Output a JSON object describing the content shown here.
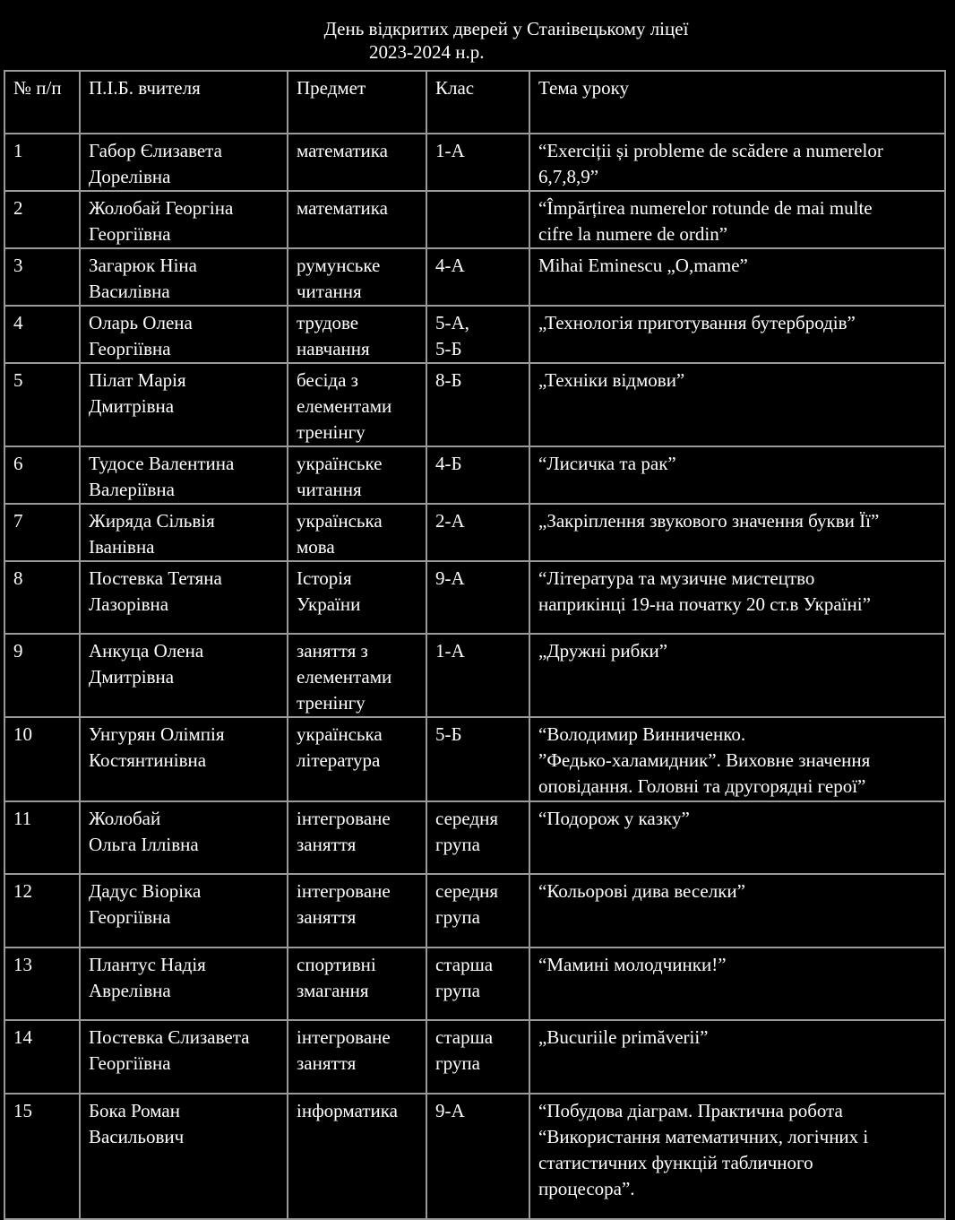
{
  "title": "День відкритих дверей  у Станівецькому ліцеї",
  "subtitle": "2023-2024 н.р.",
  "table": {
    "headers": [
      "№ п/п",
      "П.І.Б. вчителя",
      "Предмет",
      "Клас",
      "Тема уроку"
    ],
    "rows": [
      [
        "1",
        "Габор Єлизавета\nДорелівна",
        "математика",
        "1-А",
        "“Exerciții și probleme de scădere a numerelor\n6,7,8,9”"
      ],
      [
        "2",
        "Жолобай Георгіна\nГеоргіївна",
        "математика",
        "",
        "“Împărțirea numerelor rotunde de mai multe\ncifre la numere de ordin”"
      ],
      [
        "3",
        "Загарюк Ніна\nВасилівна",
        "румунське\nчитання",
        "4-А",
        "Mihai Eminescu „O,mame”"
      ],
      [
        "4",
        "Оларь Олена\nГеоргіївна",
        "трудове\nнавчання",
        "5-А,\n5-Б",
        "„Технологія приготування бутербродів”"
      ],
      [
        "5",
        "Пілат Марія\n Дмитрівна",
        "бесіда з\nелементами\nтренінгу",
        "8-Б",
        "„Техніки відмови”"
      ],
      [
        "6",
        "Тудосе Валентина\nВалеріївна",
        "українське\nчитання",
        "4-Б",
        "“Лисичка та рак”"
      ],
      [
        "7",
        "Жиряда Сільвія\nІванівна",
        "українська\nмова",
        "2-А",
        "„Закріплення звукового значення букви Її”"
      ],
      [
        "8",
        "Постевка Тетяна\nЛазорівна",
        "Історія\nУкраїни",
        "9-А",
        "“Література та музичне мистецтво\nнаприкінці 19-на початку 20 ст.в Україні”"
      ],
      [
        "9",
        "Анкуца Олена\nДмитрівна",
        "заняття з\nелементами\nтренінгу",
        "1-А",
        "„Дружні рибки”"
      ],
      [
        "10",
        "Унгурян Олімпія\nКостянтинівна",
        " українська\nлітература",
        "5-Б",
        "“Володимир Винниченко.\n”Федько-халамидник”. Виховне значення\nоповідання. Головні та другорядні герої”"
      ],
      [
        "11",
        "Жолобай\nОльга Іллівна",
        "інтегроване\nзаняття",
        "середня\nгрупа",
        "“Подорож у казку”"
      ],
      [
        "12",
        "Дадус Віоріка\nГеоргіївна",
        "інтегроване\nзаняття",
        "середня\nгрупа",
        "“Кольорові дива веселки”"
      ],
      [
        "13",
        "Плантус Надія\nАврелівна",
        "спортивні\nзмагання",
        "старша\nгрупа",
        "“Мамині молодчинки!”"
      ],
      [
        "14",
        "Постевка Єлизавета\nГеоргіївна",
        "інтегроване\nзаняття",
        "старша\nгрупа",
        "„Bucuriile primăverii”"
      ],
      [
        "15",
        "Бока Роман\nВасильович",
        "інформатика",
        "9-А",
        "“Побудова діаграм. Практична робота\n“Використання математичних, логічних і\nстатистичних функцій табличного\nпроцесора”."
      ]
    ]
  }
}
